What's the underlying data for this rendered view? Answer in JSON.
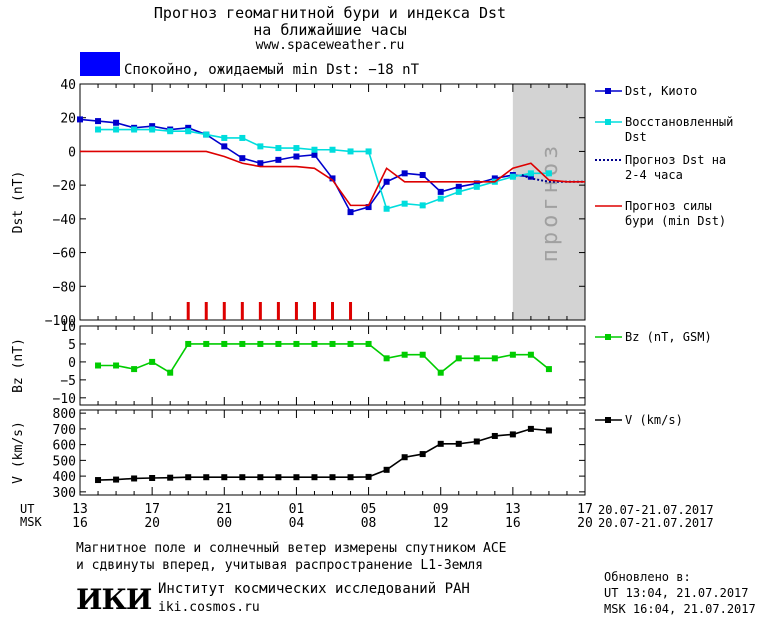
{
  "header": {
    "line1": "Прогноз геомагнитной бури и индекса Dst",
    "line2": "на ближайшие часы",
    "url": "www.spaceweather.ru",
    "status_text": "Спокойно, ожидаемый min Dst: −18 nT",
    "status_color": "#0000ff"
  },
  "forecast_label": "прогноз",
  "chart_data": [
    {
      "type": "line",
      "ylabel": "Dst (nT)",
      "ylim": [
        -100,
        40
      ],
      "yticks": [
        40,
        20,
        0,
        -20,
        -40,
        -60,
        -80,
        -100
      ],
      "xlim": [
        13,
        41
      ],
      "series": [
        {
          "name": "Dst, Киото",
          "color": "#0000cc",
          "marker": "square",
          "x": [
            13,
            14,
            15,
            16,
            17,
            18,
            19,
            20,
            21,
            22,
            23,
            24,
            25,
            26,
            27,
            28,
            29,
            30,
            31,
            32,
            33,
            34,
            35,
            36,
            37,
            38
          ],
          "y": [
            19,
            18,
            17,
            14,
            15,
            13,
            14,
            10,
            3,
            -4,
            -7,
            -5,
            -3,
            -2,
            -16,
            -36,
            -33,
            -18,
            -13,
            -14,
            -24,
            -21,
            -19,
            -16,
            -14,
            -15
          ]
        },
        {
          "name": "Восстановленный Dst",
          "color": "#00dddd",
          "marker": "square",
          "x": [
            14,
            15,
            16,
            17,
            18,
            19,
            20,
            21,
            22,
            23,
            24,
            25,
            26,
            27,
            28,
            29,
            30,
            31,
            32,
            33,
            34,
            35,
            36,
            37,
            38,
            39
          ],
          "y": [
            13,
            13,
            13,
            13,
            12,
            12,
            10,
            8,
            8,
            3,
            2,
            2,
            1,
            1,
            0,
            0,
            -34,
            -31,
            -32,
            -28,
            -24,
            -21,
            -18,
            -15,
            -13,
            -13
          ]
        },
        {
          "name": "Прогноз Dst на 2-4 часа",
          "color": "#00008b",
          "style": "dotted",
          "x": [
            37.5,
            38,
            39,
            40,
            41
          ],
          "y": [
            -14,
            -16,
            -18,
            -18,
            -18
          ]
        },
        {
          "name": "Прогноз силы бури (min Dst)",
          "color": "#dd0000",
          "x": [
            13,
            20,
            21,
            22,
            23,
            24,
            25,
            26,
            27,
            28,
            29,
            30,
            31,
            32,
            33,
            34,
            35,
            36,
            37,
            38,
            39,
            40,
            41
          ],
          "y": [
            0,
            0,
            -3,
            -7,
            -9,
            -9,
            -9,
            -10,
            -17,
            -32,
            -32,
            -10,
            -18,
            -18,
            -18,
            -18,
            -18,
            -18,
            -10,
            -7,
            -17,
            -18,
            -18
          ]
        }
      ],
      "event_ticks_x": [
        19,
        20,
        21,
        22,
        23,
        24,
        25,
        26,
        27,
        28
      ],
      "event_ticks_color": "#dd0000"
    },
    {
      "type": "line",
      "ylabel": "Bz (nT)",
      "ylim": [
        -12,
        10
      ],
      "yticks": [
        10,
        5,
        0,
        -5,
        -10
      ],
      "xlim": [
        13,
        41
      ],
      "series": [
        {
          "name": "Bz (nT, GSM)",
          "color": "#00cc00",
          "marker": "square",
          "x": [
            14,
            15,
            16,
            17,
            18,
            19,
            20,
            21,
            22,
            23,
            24,
            25,
            26,
            27,
            28,
            29,
            30,
            31,
            32,
            33,
            34,
            35,
            36,
            37,
            38,
            39
          ],
          "y": [
            -1,
            -1,
            -2,
            0,
            -3,
            5,
            5,
            5,
            5,
            5,
            5,
            5,
            5,
            5,
            5,
            5,
            1,
            2,
            2,
            -3,
            1,
            1,
            1,
            2,
            2,
            -2
          ]
        }
      ]
    },
    {
      "type": "line",
      "ylabel": "V (km/s)",
      "ylim": [
        280,
        820
      ],
      "yticks": [
        800,
        700,
        600,
        500,
        400,
        300
      ],
      "xlim": [
        13,
        41
      ],
      "series": [
        {
          "name": "V (km/s)",
          "color": "#000000",
          "marker": "square",
          "x": [
            14,
            15,
            16,
            17,
            18,
            19,
            20,
            21,
            22,
            23,
            24,
            25,
            26,
            27,
            28,
            29,
            30,
            31,
            32,
            33,
            34,
            35,
            36,
            37,
            38,
            39
          ],
          "y": [
            375,
            378,
            385,
            388,
            390,
            393,
            393,
            393,
            393,
            393,
            393,
            393,
            393,
            393,
            393,
            395,
            440,
            520,
            540,
            605,
            605,
            620,
            655,
            665,
            700,
            690
          ]
        }
      ]
    }
  ],
  "x_axis": {
    "ut_label": "UT",
    "msk_label": "MSK",
    "ut_ticks": [
      "13",
      "17",
      "21",
      "01",
      "05",
      "09",
      "13",
      "17"
    ],
    "msk_ticks": [
      "16",
      "20",
      "00",
      "04",
      "08",
      "12",
      "16",
      "20"
    ],
    "date_range_ut": "20.07-21.07.2017",
    "date_range_msk": "20.07-21.07.2017"
  },
  "footer": {
    "note_line1": "Магнитное поле и солнечный ветер измерены спутником ACE",
    "note_line2": "и сдвинуты вперед, учитывая распространение L1-Земля",
    "logo_text": "ИКИ",
    "institute": "Институт космических исследований РАН",
    "site": "iki.cosmos.ru",
    "updated_label": "Обновлено в:",
    "updated_ut": "UT  13:04, 21.07.2017",
    "updated_msk": "MSK 16:04, 21.07.2017"
  }
}
